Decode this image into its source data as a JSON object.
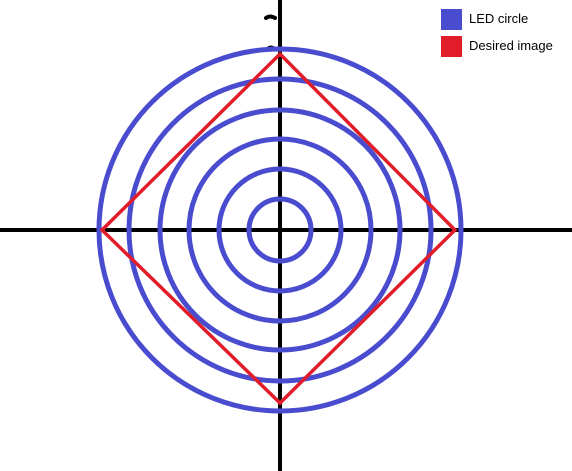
{
  "colors": {
    "led_circle": "#4a4ccf",
    "desired_image": "#e11d2a",
    "axes": "#000000",
    "background": "#ffffff"
  },
  "legend": {
    "items": [
      {
        "label": "LED circle",
        "color": "#4a4ccf"
      },
      {
        "label": "Desired image",
        "color": "#e11d2a"
      }
    ]
  },
  "diagram": {
    "led_circle_count": 6,
    "desired_image_shape": "diamond"
  }
}
